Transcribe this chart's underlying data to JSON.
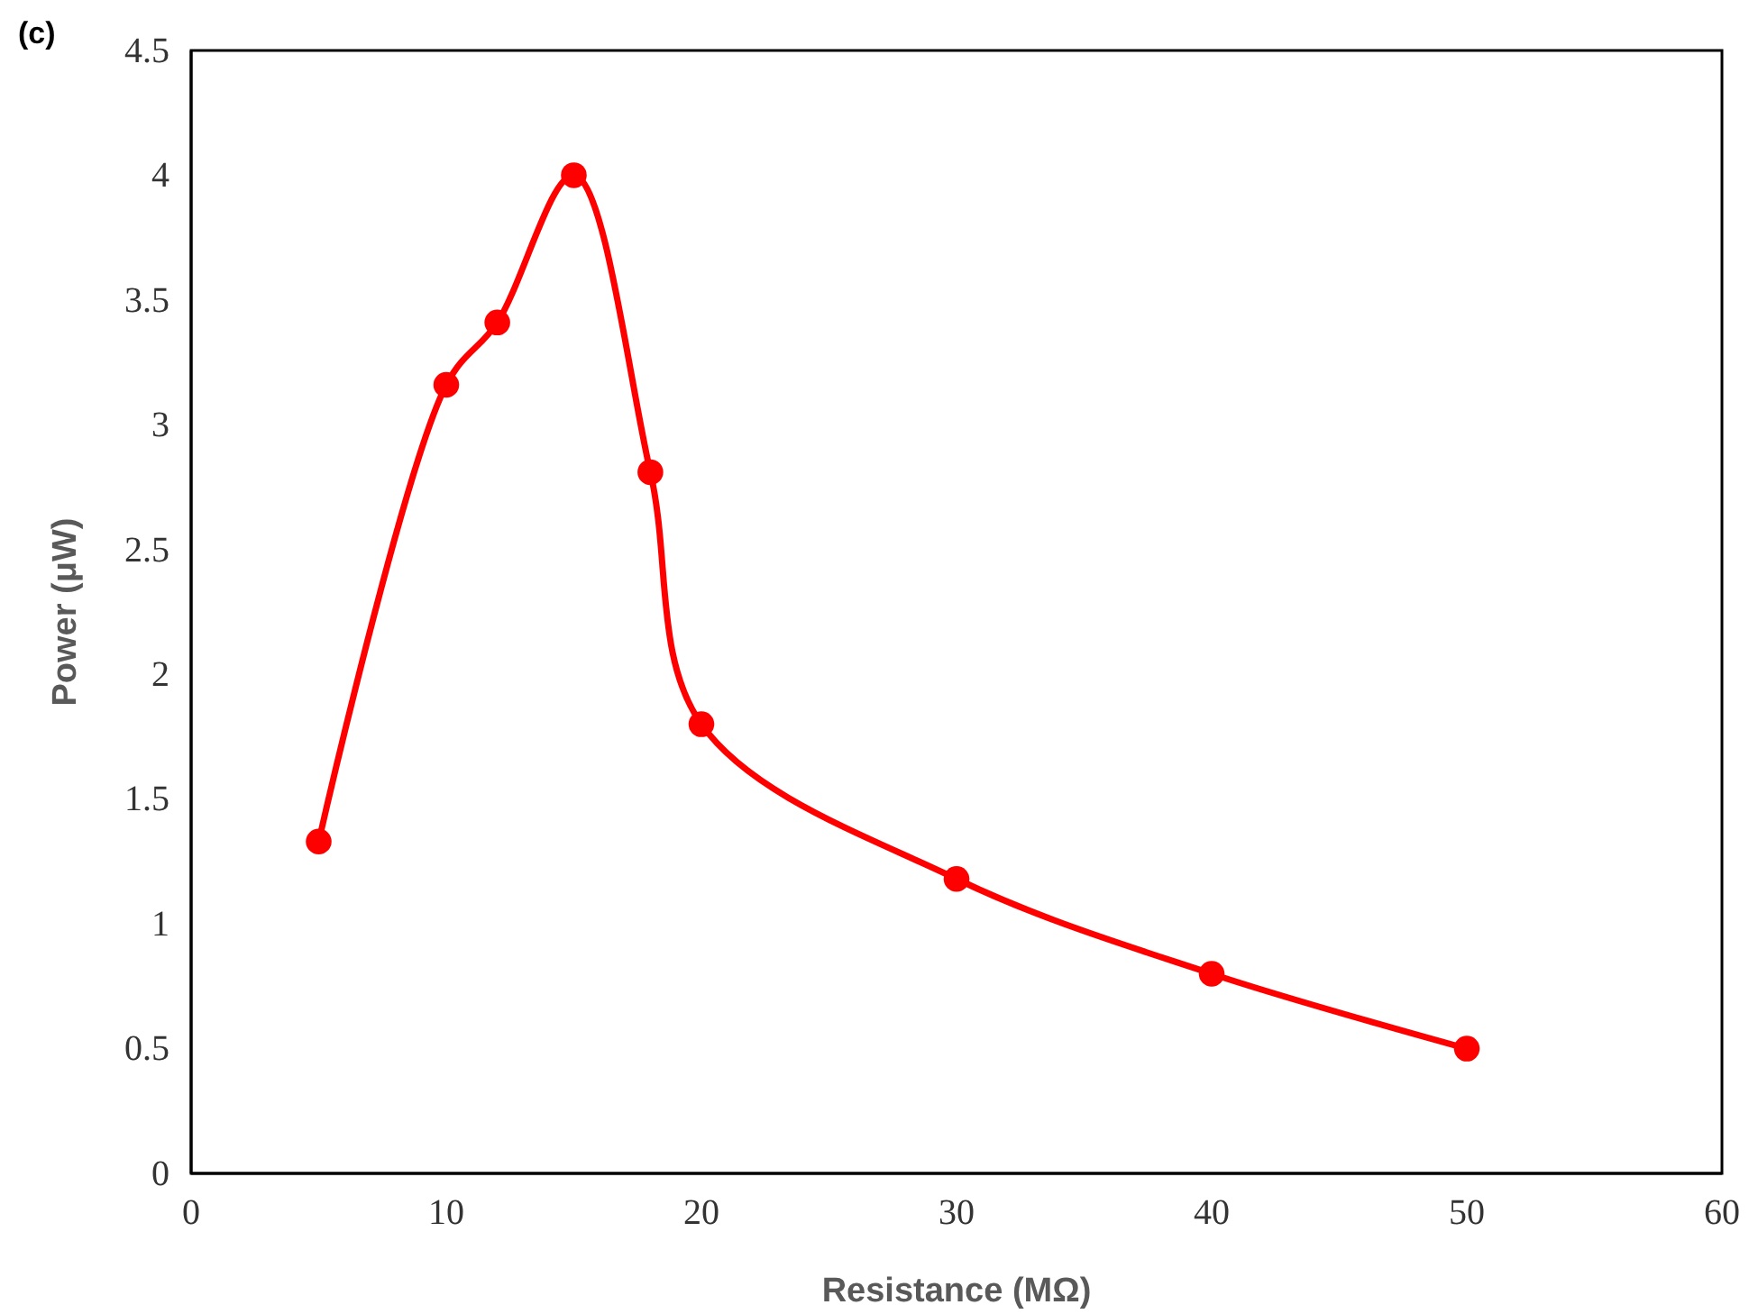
{
  "chart_data": {
    "type": "line",
    "xlabel": "Resistance (MΩ)",
    "ylabel": "Power (μW)",
    "annotations": [
      "(c)"
    ],
    "xlim": [
      0,
      60
    ],
    "xticks": [
      0,
      10,
      20,
      30,
      40,
      50,
      60
    ],
    "ylim": [
      0,
      4.5
    ],
    "yticks": [
      0,
      0.5,
      1,
      1.5,
      2,
      2.5,
      3,
      3.5,
      4,
      4.5
    ],
    "grid": false,
    "marker": "circle",
    "line_style": "solid",
    "x": [
      5,
      10,
      12,
      15,
      18,
      20,
      30,
      40,
      50
    ],
    "series": [
      {
        "color": "#ff0000",
        "values": [
          1.33,
          3.16,
          3.41,
          4.0,
          2.81,
          1.8,
          1.18,
          0.8,
          0.5
        ]
      }
    ]
  }
}
